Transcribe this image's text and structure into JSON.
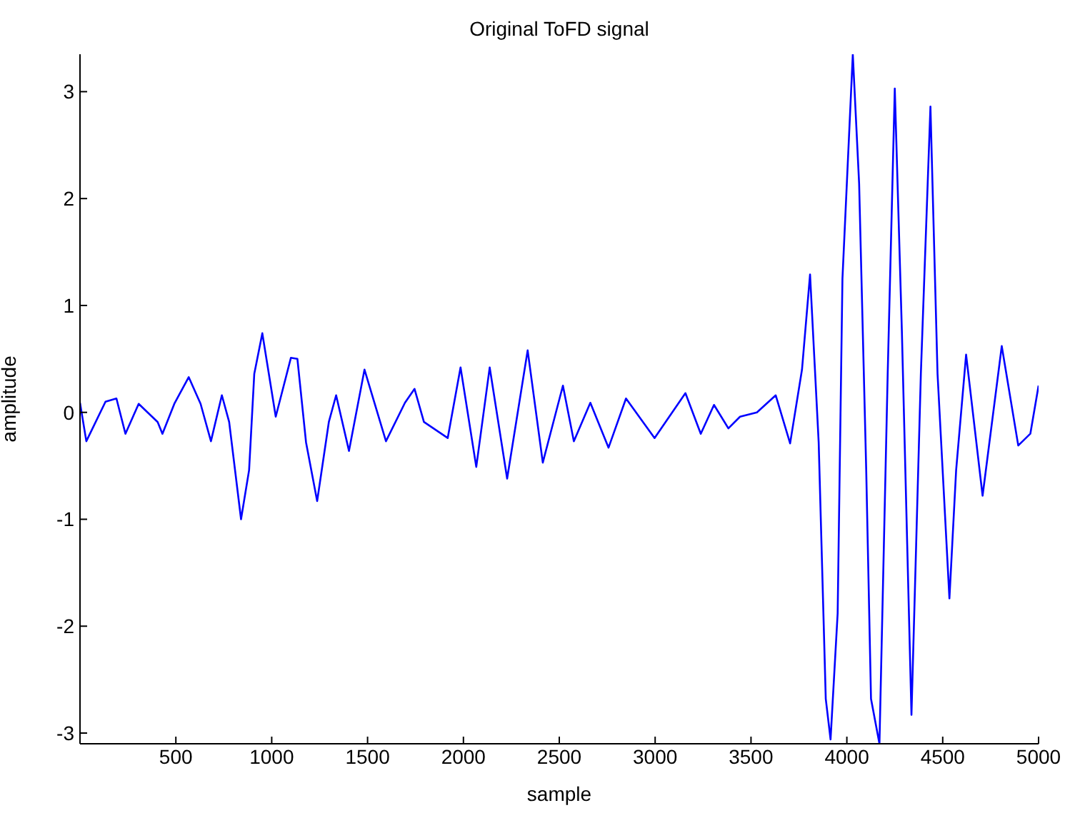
{
  "chart_data": {
    "type": "line",
    "title": "Original ToFD signal",
    "xlabel": "sample",
    "ylabel": "amplitude",
    "x": [
      0,
      33,
      133,
      190,
      237,
      306,
      405,
      430,
      492,
      567,
      629,
      683,
      740,
      778,
      840,
      882,
      909,
      951,
      1021,
      1100,
      1134,
      1179,
      1237,
      1298,
      1336,
      1403,
      1484,
      1596,
      1695,
      1745,
      1794,
      1918,
      1985,
      2067,
      2137,
      2228,
      2335,
      2414,
      2519,
      2576,
      2662,
      2757,
      2848,
      2997,
      3158,
      3238,
      3307,
      3382,
      3443,
      3531,
      3629,
      3704,
      3766,
      3808,
      3853,
      3890,
      3915,
      3952,
      3977,
      4031,
      4064,
      4101,
      4126,
      4170,
      4213,
      4250,
      4287,
      4337,
      4386,
      4436,
      4473,
      4535,
      4570,
      4622,
      4708,
      4808,
      4894,
      4957,
      5000
    ],
    "series": [
      {
        "color": "#0000ff",
        "values": [
          0.09,
          -0.27,
          0.1,
          0.13,
          -0.2,
          0.08,
          -0.09,
          -0.2,
          0.08,
          0.33,
          0.08,
          -0.27,
          0.16,
          -0.09,
          -1.0,
          -0.54,
          0.36,
          0.74,
          -0.04,
          0.51,
          0.5,
          -0.28,
          -0.83,
          -0.09,
          0.16,
          -0.36,
          0.4,
          -0.27,
          0.09,
          0.22,
          -0.09,
          -0.24,
          0.42,
          -0.51,
          0.42,
          -0.62,
          0.58,
          -0.47,
          0.25,
          -0.27,
          0.09,
          -0.33,
          0.13,
          -0.24,
          0.18,
          -0.2,
          0.07,
          -0.15,
          -0.04,
          0,
          0.16,
          -0.29,
          0.4,
          1.29,
          -0.28,
          -2.68,
          -3.06,
          -1.88,
          1.25,
          3.35,
          2.14,
          -0.54,
          -2.68,
          -3.1,
          0.36,
          3.03,
          0.76,
          -2.83,
          0.36,
          2.86,
          0.36,
          -1.74,
          -0.54,
          0.54,
          -0.78,
          0.62,
          -0.31,
          -0.2,
          0.25
        ]
      }
    ],
    "xlim": [
      0,
      5000
    ],
    "xticks": [
      500,
      1000,
      1500,
      2000,
      2500,
      3000,
      3500,
      4000,
      4500,
      5000
    ],
    "ylim": [
      -3.1,
      3.35
    ],
    "yticks": [
      -3,
      -2,
      -1,
      0,
      1,
      2,
      3
    ],
    "grid": false,
    "legend": false,
    "marker": "none",
    "line_style": "solid"
  }
}
